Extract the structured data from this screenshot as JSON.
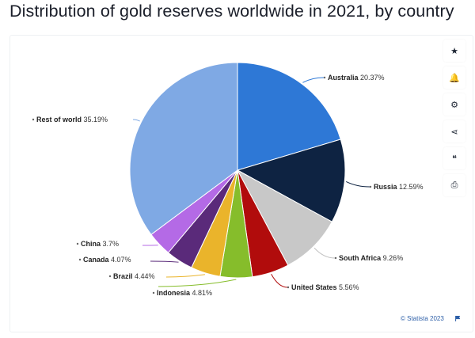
{
  "title": "Distribution of gold reserves worldwide in 2021, by country",
  "toolbar": {
    "items": [
      {
        "icon": "star-icon",
        "glyph": "★"
      },
      {
        "icon": "bell-icon",
        "glyph": "🔔"
      },
      {
        "icon": "gear-icon",
        "glyph": "⚙"
      },
      {
        "icon": "share-icon",
        "glyph": "⋖"
      },
      {
        "icon": "quote-icon",
        "glyph": "❝"
      },
      {
        "icon": "print-icon",
        "glyph": "⎙"
      }
    ]
  },
  "credit": "© Statista 2023",
  "chart_data": {
    "type": "pie",
    "title": "Distribution of gold reserves worldwide in 2021, by country",
    "start_angle_deg": 0,
    "direction": "clockwise",
    "slices": [
      {
        "label": "Australia",
        "value": 20.37,
        "display": "20.37%",
        "color": "#2e78d6",
        "label_color": "#2e78d6"
      },
      {
        "label": "Russia",
        "value": 12.59,
        "display": "12.59%",
        "color": "#0e2342",
        "label_color": "#0e2342"
      },
      {
        "label": "South Africa",
        "value": 9.26,
        "display": "9.26%",
        "color": "#c8c8c8",
        "label_color": "#bdbdbd"
      },
      {
        "label": "United States",
        "value": 5.56,
        "display": "5.56%",
        "color": "#b10c0c",
        "label_color": "#b10c0c"
      },
      {
        "label": "Indonesia",
        "value": 4.81,
        "display": "4.81%",
        "color": "#86bd2b",
        "label_color": "#86bd2b"
      },
      {
        "label": "Brazil",
        "value": 4.44,
        "display": "4.44%",
        "color": "#eab42b",
        "label_color": "#eab42b"
      },
      {
        "label": "Canada",
        "value": 4.07,
        "display": "4.07%",
        "color": "#5a2a7a",
        "label_color": "#5a2a7a"
      },
      {
        "label": "China",
        "value": 3.7,
        "display": "3.7%",
        "color": "#b46ae6",
        "label_color": "#b46ae6"
      },
      {
        "label": "Rest of world",
        "value": 35.19,
        "display": "35.19%",
        "color": "#7fa9e4",
        "label_color": "#7fa9e4"
      }
    ]
  }
}
